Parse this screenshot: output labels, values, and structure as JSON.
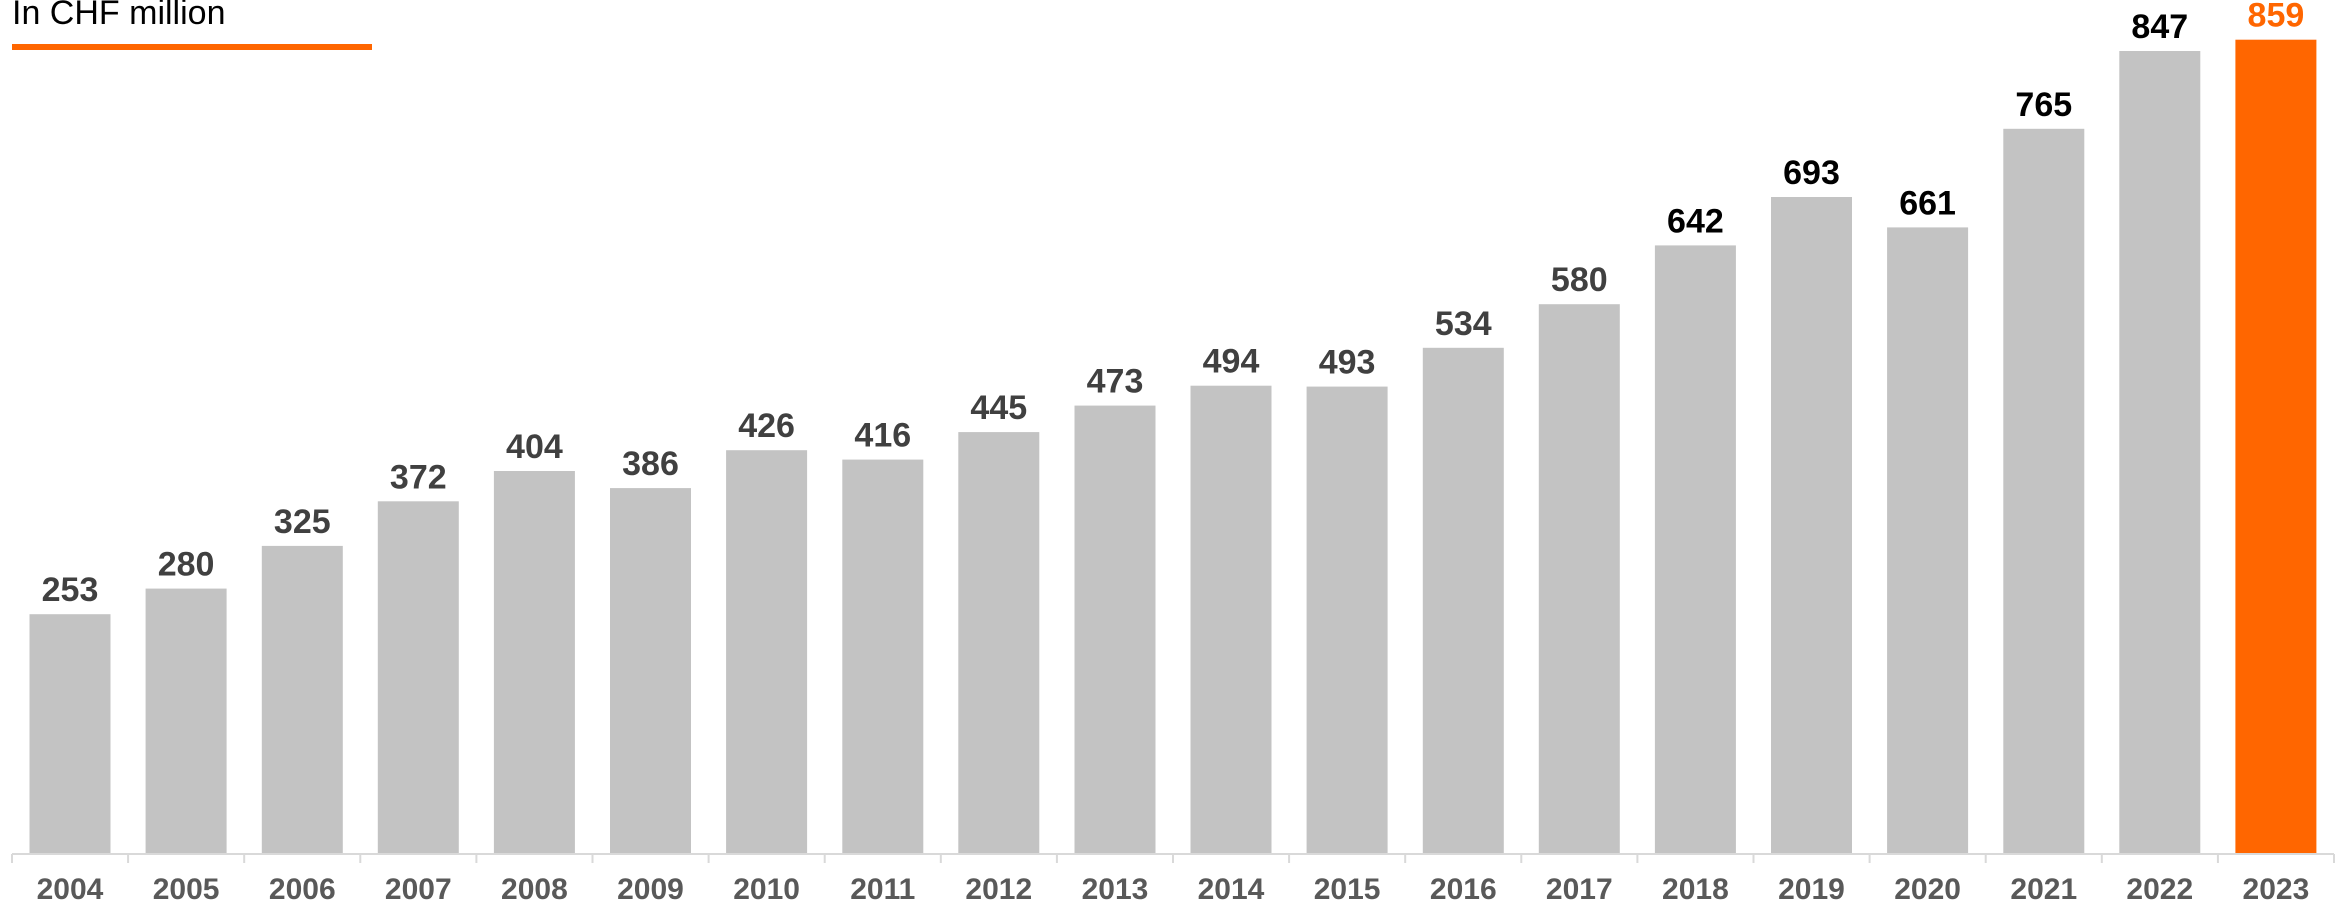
{
  "chart_data": {
    "type": "bar",
    "unit_label": "In CHF million",
    "categories": [
      "2004",
      "2005",
      "2006",
      "2007",
      "2008",
      "2009",
      "2010",
      "2011",
      "2012",
      "2013",
      "2014",
      "2015",
      "2016",
      "2017",
      "2018",
      "2019",
      "2020",
      "2021",
      "2022",
      "2023"
    ],
    "values": [
      253,
      280,
      325,
      372,
      404,
      386,
      426,
      416,
      445,
      473,
      494,
      493,
      534,
      580,
      642,
      693,
      661,
      765,
      847,
      859
    ],
    "highlight_index": 19,
    "label_style": {
      "older_years": [
        "2004",
        "2005",
        "2006",
        "2007",
        "2008",
        "2009",
        "2010",
        "2011",
        "2012",
        "2013",
        "2014",
        "2015",
        "2016",
        "2017"
      ],
      "recent_years": [
        "2018",
        "2019",
        "2020",
        "2021",
        "2022"
      ],
      "highlight_year": "2023"
    },
    "colors": {
      "bar": "#c3c3c3",
      "highlight_bar": "#ff6600",
      "value_label": "#404040",
      "value_label_recent": "#000000",
      "highlight_label": "#ff6600",
      "tick_label": "#595959",
      "axis": "#d9d9d9",
      "underline": "#ff6600"
    },
    "title": "",
    "xlabel": "",
    "ylabel": "",
    "ylim": [
      0,
      900
    ],
    "grid": false,
    "legend": "none",
    "data_labels": true
  }
}
